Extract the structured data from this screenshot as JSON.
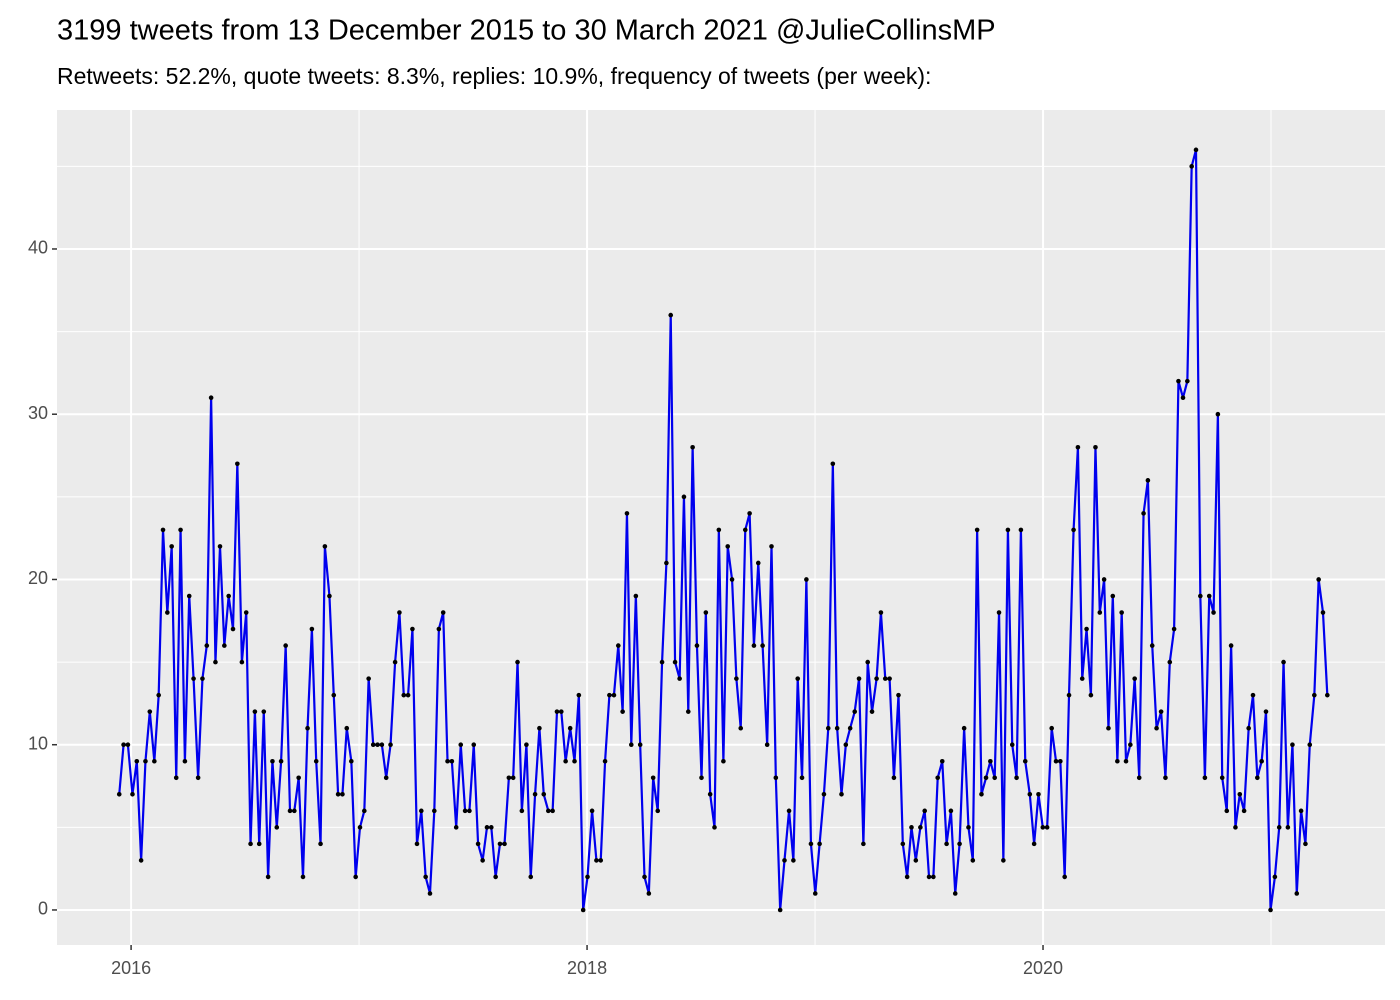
{
  "chart_data": {
    "type": "line",
    "title": "3199 tweets from 13 December 2015 to 30 March 2021 @JulieCollinsMP",
    "subtitle": "Retweets: 52.2%, quote tweets: 8.3%, replies: 10.9%, frequency of tweets (per week):",
    "x": [
      2015.948,
      2015.967,
      2015.986,
      2016.006,
      2016.025,
      2016.044,
      2016.063,
      2016.082,
      2016.102,
      2016.121,
      2016.14,
      2016.159,
      2016.178,
      2016.198,
      2016.217,
      2016.236,
      2016.255,
      2016.274,
      2016.294,
      2016.313,
      2016.332,
      2016.351,
      2016.37,
      2016.39,
      2016.409,
      2016.428,
      2016.447,
      2016.466,
      2016.486,
      2016.505,
      2016.524,
      2016.543,
      2016.562,
      2016.582,
      2016.601,
      2016.62,
      2016.639,
      2016.658,
      2016.678,
      2016.697,
      2016.716,
      2016.735,
      2016.754,
      2016.774,
      2016.793,
      2016.812,
      2016.831,
      2016.85,
      2016.87,
      2016.889,
      2016.908,
      2016.927,
      2016.946,
      2016.966,
      2016.985,
      2017.004,
      2017.023,
      2017.042,
      2017.062,
      2017.081,
      2017.1,
      2017.119,
      2017.138,
      2017.158,
      2017.177,
      2017.196,
      2017.215,
      2017.234,
      2017.254,
      2017.273,
      2017.292,
      2017.311,
      2017.33,
      2017.35,
      2017.369,
      2017.388,
      2017.407,
      2017.426,
      2017.446,
      2017.465,
      2017.484,
      2017.503,
      2017.522,
      2017.542,
      2017.561,
      2017.58,
      2017.599,
      2017.618,
      2017.638,
      2017.657,
      2017.676,
      2017.695,
      2017.714,
      2017.734,
      2017.753,
      2017.772,
      2017.791,
      2017.81,
      2017.83,
      2017.849,
      2017.868,
      2017.887,
      2017.906,
      2017.926,
      2017.945,
      2017.964,
      2017.983,
      2018.002,
      2018.022,
      2018.041,
      2018.06,
      2018.079,
      2018.098,
      2018.118,
      2018.137,
      2018.156,
      2018.175,
      2018.194,
      2018.214,
      2018.233,
      2018.252,
      2018.271,
      2018.29,
      2018.31,
      2018.329,
      2018.348,
      2018.367,
      2018.386,
      2018.406,
      2018.425,
      2018.444,
      2018.463,
      2018.482,
      2018.502,
      2018.521,
      2018.54,
      2018.559,
      2018.578,
      2018.598,
      2018.617,
      2018.636,
      2018.655,
      2018.674,
      2018.694,
      2018.713,
      2018.732,
      2018.751,
      2018.77,
      2018.79,
      2018.809,
      2018.828,
      2018.847,
      2018.866,
      2018.886,
      2018.905,
      2018.924,
      2018.943,
      2018.962,
      2018.982,
      2019.001,
      2019.02,
      2019.039,
      2019.058,
      2019.078,
      2019.097,
      2019.116,
      2019.135,
      2019.154,
      2019.174,
      2019.193,
      2019.212,
      2019.231,
      2019.25,
      2019.27,
      2019.289,
      2019.308,
      2019.327,
      2019.346,
      2019.366,
      2019.385,
      2019.404,
      2019.423,
      2019.442,
      2019.462,
      2019.481,
      2019.5,
      2019.519,
      2019.538,
      2019.558,
      2019.577,
      2019.596,
      2019.615,
      2019.634,
      2019.654,
      2019.673,
      2019.692,
      2019.711,
      2019.73,
      2019.75,
      2019.769,
      2019.788,
      2019.807,
      2019.826,
      2019.846,
      2019.865,
      2019.884,
      2019.903,
      2019.922,
      2019.942,
      2019.961,
      2019.98,
      2019.999,
      2020.018,
      2020.038,
      2020.057,
      2020.076,
      2020.095,
      2020.114,
      2020.134,
      2020.153,
      2020.172,
      2020.191,
      2020.21,
      2020.23,
      2020.249,
      2020.268,
      2020.287,
      2020.306,
      2020.326,
      2020.345,
      2020.364,
      2020.383,
      2020.402,
      2020.422,
      2020.441,
      2020.46,
      2020.479,
      2020.498,
      2020.518,
      2020.537,
      2020.556,
      2020.575,
      2020.594,
      2020.614,
      2020.633,
      2020.652,
      2020.671,
      2020.69,
      2020.71,
      2020.729,
      2020.748,
      2020.767,
      2020.786,
      2020.806,
      2020.825,
      2020.844,
      2020.863,
      2020.882,
      2020.902,
      2020.921,
      2020.94,
      2020.959,
      2020.978,
      2020.998,
      2021.017,
      2021.036,
      2021.055,
      2021.074,
      2021.094,
      2021.113,
      2021.132,
      2021.151,
      2021.17,
      2021.19,
      2021.209,
      2021.228,
      2021.247
    ],
    "series": [
      {
        "color": "#0000ee",
        "point_color": "#000000",
        "values": [
          7,
          10,
          10,
          7,
          9,
          3,
          9,
          12,
          9,
          13,
          23,
          18,
          22,
          8,
          23,
          9,
          19,
          14,
          8,
          14,
          16,
          31,
          15,
          22,
          16,
          19,
          17,
          27,
          15,
          18,
          4,
          12,
          4,
          12,
          2,
          9,
          5,
          9,
          16,
          6,
          6,
          8,
          2,
          11,
          17,
          9,
          4,
          22,
          19,
          13,
          7,
          7,
          11,
          9,
          2,
          5,
          6,
          14,
          10,
          10,
          10,
          8,
          10,
          15,
          18,
          13,
          13,
          17,
          4,
          6,
          2,
          1,
          6,
          17,
          18,
          9,
          9,
          5,
          10,
          6,
          6,
          10,
          4,
          3,
          5,
          5,
          2,
          4,
          4,
          8,
          8,
          15,
          6,
          10,
          2,
          7,
          11,
          7,
          6,
          6,
          12,
          12,
          9,
          11,
          9,
          13,
          0,
          2,
          6,
          3,
          3,
          9,
          13,
          13,
          16,
          12,
          24,
          10,
          19,
          10,
          2,
          1,
          8,
          6,
          15,
          21,
          36,
          15,
          14,
          25,
          12,
          28,
          16,
          8,
          18,
          7,
          5,
          23,
          9,
          22,
          20,
          14,
          11,
          23,
          24,
          16,
          21,
          16,
          10,
          22,
          8,
          0,
          3,
          6,
          3,
          14,
          8,
          20,
          4,
          1,
          4,
          7,
          11,
          27,
          11,
          7,
          10,
          11,
          12,
          14,
          4,
          15,
          12,
          14,
          18,
          14,
          14,
          8,
          13,
          4,
          2,
          5,
          3,
          5,
          6,
          2,
          2,
          8,
          9,
          4,
          6,
          1,
          4,
          11,
          5,
          3,
          23,
          7,
          8,
          9,
          8,
          18,
          3,
          23,
          10,
          8,
          23,
          9,
          7,
          4,
          7,
          5,
          5,
          11,
          9,
          9,
          2,
          13,
          23,
          28,
          14,
          17,
          13,
          28,
          18,
          20,
          11,
          19,
          9,
          18,
          9,
          10,
          14,
          8,
          24,
          26,
          16,
          11,
          12,
          8,
          15,
          17,
          32,
          31,
          32,
          45,
          46,
          19,
          8,
          19,
          18,
          30,
          8,
          6,
          16,
          5,
          7,
          6,
          11,
          13,
          8,
          9,
          12,
          0,
          2,
          5,
          15,
          5,
          10,
          1,
          6,
          4,
          10,
          13,
          20,
          18,
          13
        ]
      }
    ],
    "xlim": [
      2015.675,
      2021.5
    ],
    "xticks": [
      2016,
      2018,
      2020
    ],
    "ylim": [
      -2.12,
      48.41
    ],
    "yticks": [
      0,
      10,
      20,
      30,
      40
    ],
    "grid": true
  }
}
